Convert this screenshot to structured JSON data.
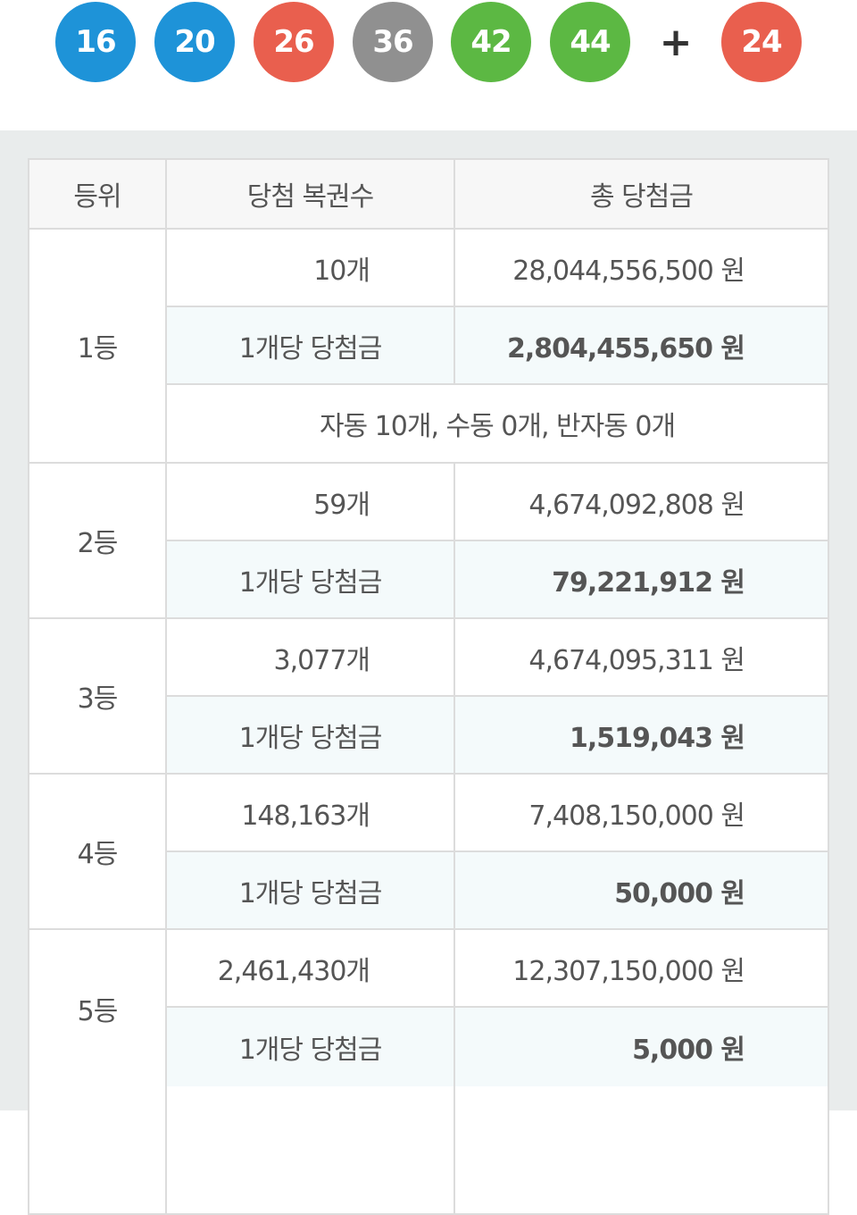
{
  "draw": {
    "balls": [
      {
        "number": "16",
        "color": "#1e93d8"
      },
      {
        "number": "20",
        "color": "#1e93d8"
      },
      {
        "number": "26",
        "color": "#e95f4e"
      },
      {
        "number": "36",
        "color": "#909090"
      },
      {
        "number": "42",
        "color": "#5cb843"
      },
      {
        "number": "44",
        "color": "#5cb843"
      }
    ],
    "plus": "+",
    "bonus": {
      "number": "24",
      "color": "#e95f4e"
    }
  },
  "table": {
    "headers": [
      "등위",
      "당첨 복권수",
      "총 당첨금"
    ],
    "ranks": [
      {
        "rank": "1등",
        "count": "10개",
        "total": "28,044,556,500 원",
        "per_label": "1개당 당첨금",
        "per_amount": "2,804,455,650 원",
        "note": "자동 10개, 수동 0개, 반자동 0개"
      },
      {
        "rank": "2등",
        "count": "59개",
        "total": "4,674,092,808 원",
        "per_label": "1개당 당첨금",
        "per_amount": "79,221,912 원"
      },
      {
        "rank": "3등",
        "count": "3,077개",
        "total": "4,674,095,311 원",
        "per_label": "1개당 당첨금",
        "per_amount": "1,519,043 원"
      },
      {
        "rank": "4등",
        "count": "148,163개",
        "total": "7,408,150,000 원",
        "per_label": "1개당 당첨금",
        "per_amount": "50,000 원"
      },
      {
        "rank": "5등",
        "count": "2,461,430개",
        "total": "12,307,150,000 원",
        "per_label": "1개당 당첨금",
        "per_amount": "5,000 원"
      }
    ]
  }
}
